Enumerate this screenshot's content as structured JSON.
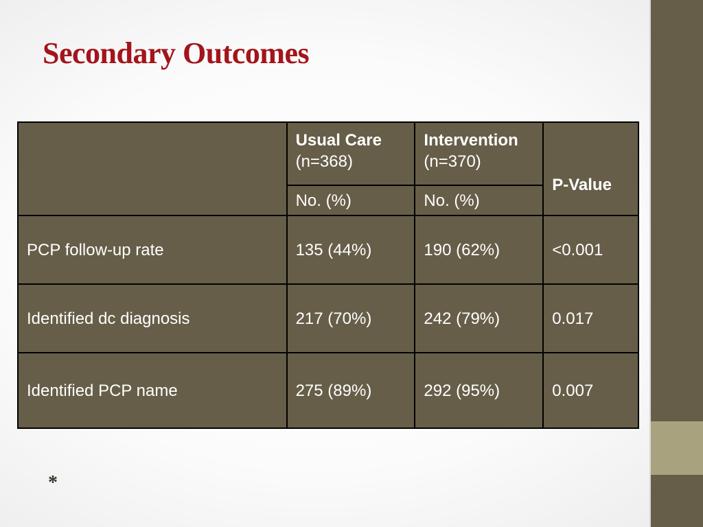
{
  "slide": {
    "title": "Secondary Outcomes",
    "footnote": "*"
  },
  "table": {
    "groups": [
      {
        "name": "Usual Care",
        "n": "(n=368)",
        "unit": "No. (%)"
      },
      {
        "name": "Intervention",
        "n": "(n=370)",
        "unit": "No. (%)"
      }
    ],
    "pvalue_header": "P-Value",
    "rows": [
      {
        "label": "PCP follow-up rate",
        "usual": "135 (44%)",
        "intervention": "190 (62%)",
        "p": "<0.001"
      },
      {
        "label": "Identified dc diagnosis",
        "usual": "217 (70%)",
        "intervention": "242 (79%)",
        "p": "0.017"
      },
      {
        "label": "Identified PCP name",
        "usual": "275 (89%)",
        "intervention": "292 (95%)",
        "p": "0.007"
      }
    ]
  },
  "colors": {
    "title": "#a3141b",
    "table_fill": "#665e48",
    "sidebar": "#665e48",
    "sidebar_accent": "#a8a37e",
    "table_text": "#ffffff",
    "border": "#000000"
  }
}
